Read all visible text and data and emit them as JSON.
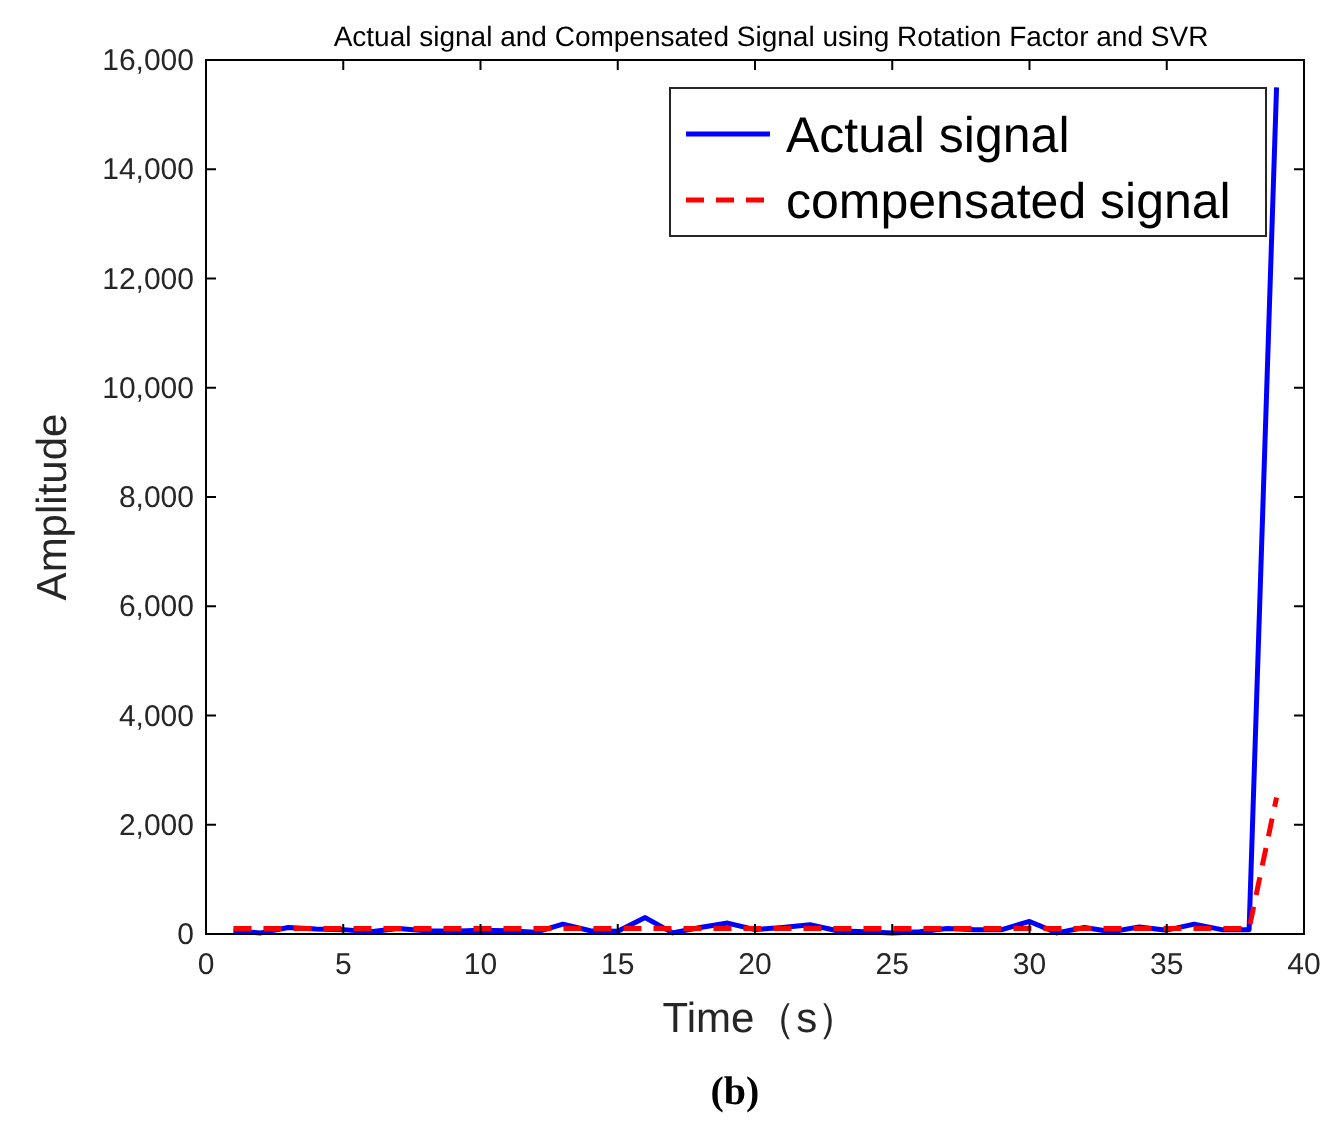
{
  "chart_data": {
    "type": "line",
    "title": "Actual signal and Compensated Signal using Rotation Factor and SVR",
    "xlabel": "Time（s）",
    "ylabel": "Amplitude",
    "annotations": [
      "(b)"
    ],
    "x": [
      1,
      2,
      3,
      4,
      5,
      6,
      7,
      8,
      9,
      10,
      11,
      12,
      13,
      14,
      15,
      16,
      17,
      18,
      19,
      20,
      21,
      22,
      23,
      24,
      25,
      26,
      27,
      28,
      29,
      30,
      31,
      32,
      33,
      34,
      35,
      36,
      37,
      38,
      39
    ],
    "series": [
      {
        "name": "Actual signal",
        "color": "#0000ff",
        "line_style": "solid",
        "values": [
          50,
          20,
          120,
          90,
          80,
          40,
          100,
          60,
          50,
          70,
          60,
          30,
          180,
          60,
          50,
          300,
          20,
          120,
          200,
          80,
          120,
          170,
          60,
          40,
          20,
          40,
          100,
          80,
          80,
          230,
          20,
          120,
          40,
          130,
          70,
          180,
          80,
          80,
          15500
        ]
      },
      {
        "name": "compensated signal",
        "color": "#ff0000",
        "line_style": "dashed",
        "values": [
          100,
          100,
          100,
          100,
          100,
          100,
          100,
          100,
          100,
          100,
          100,
          100,
          100,
          100,
          100,
          100,
          100,
          100,
          100,
          100,
          100,
          100,
          100,
          100,
          100,
          100,
          100,
          100,
          100,
          100,
          100,
          100,
          100,
          100,
          100,
          100,
          100,
          100,
          2500
        ]
      }
    ],
    "xlim": [
      0,
      40
    ],
    "xticks": [
      0,
      5,
      10,
      15,
      20,
      25,
      30,
      35,
      40
    ],
    "ylim": [
      0,
      16000
    ],
    "yticks": [
      0,
      {
        "value": 2000,
        "label": "2,000"
      },
      {
        "value": 4000,
        "label": "4,000"
      },
      {
        "value": 6000,
        "label": "6,000"
      },
      {
        "value": 8000,
        "label": "8,000"
      },
      {
        "value": 10000,
        "label": "10,000"
      },
      {
        "value": 12000,
        "label": "12,000"
      },
      {
        "value": 14000,
        "label": "14,000"
      },
      {
        "value": 16000,
        "label": "16,000"
      }
    ],
    "legend": "top right"
  }
}
